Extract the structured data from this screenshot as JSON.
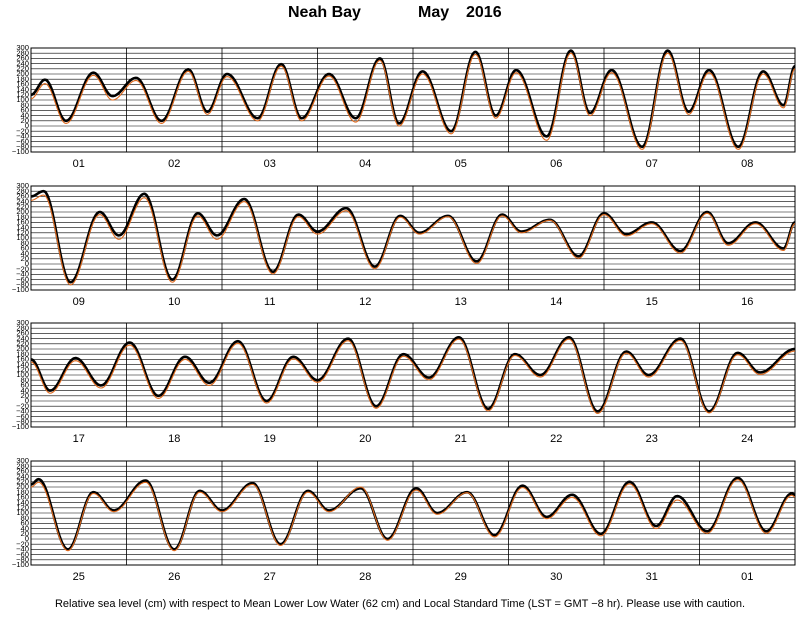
{
  "title": {
    "place": "Neah Bay",
    "month": "May",
    "year": "2016"
  },
  "caption": "Relative sea level (cm) with respect to Mean Lower Low Water (62 cm) and Local Standard Time (LST = GMT −8 hr). Please use with caution.",
  "chart_data": {
    "type": "line",
    "ylim": [
      -100,
      300
    ],
    "yticks": [
      300,
      280,
      260,
      240,
      220,
      200,
      180,
      160,
      140,
      120,
      100,
      80,
      60,
      40,
      20,
      0,
      -20,
      -40,
      -60,
      -80,
      -100
    ],
    "ytick_labels": [
      "300",
      "280",
      "260",
      "240",
      "220",
      "200",
      "180",
      "160",
      "140",
      "120",
      "100",
      "80",
      "60",
      "40",
      "20",
      "0",
      "−20",
      "−40",
      "−60",
      "−80",
      "−100"
    ],
    "grid": true,
    "series": [
      {
        "role": "observed",
        "color": "#000000"
      },
      {
        "role": "predicted",
        "color": "#e06a1e"
      }
    ],
    "colors": {
      "observed": "#000000",
      "predicted": "#e06a1e",
      "grid": "#000000"
    },
    "panels": [
      {
        "days": [
          "01",
          "02",
          "03",
          "04",
          "05",
          "06",
          "07",
          "08"
        ],
        "observed_extrema": [
          {
            "t": 0,
            "v": 120
          },
          {
            "t": 0.22,
            "v": 178
          },
          {
            "t": 0.55,
            "v": 20
          },
          {
            "t": 0.98,
            "v": 205
          },
          {
            "t": 1.28,
            "v": 115
          },
          {
            "t": 1.65,
            "v": 185
          },
          {
            "t": 2.05,
            "v": 20
          },
          {
            "t": 2.47,
            "v": 218
          },
          {
            "t": 2.77,
            "v": 55
          },
          {
            "t": 3.08,
            "v": 200
          },
          {
            "t": 3.56,
            "v": 30
          },
          {
            "t": 3.93,
            "v": 238
          },
          {
            "t": 4.25,
            "v": 30
          },
          {
            "t": 4.68,
            "v": 200
          },
          {
            "t": 5.1,
            "v": 30
          },
          {
            "t": 5.48,
            "v": 260
          },
          {
            "t": 5.78,
            "v": 10
          },
          {
            "t": 6.15,
            "v": 210
          },
          {
            "t": 6.6,
            "v": -20
          },
          {
            "t": 6.98,
            "v": 285
          },
          {
            "t": 7.3,
            "v": 40
          },
          {
            "t": 7.62,
            "v": 215
          },
          {
            "t": 8.1,
            "v": -40
          },
          {
            "t": 8.48,
            "v": 290
          },
          {
            "t": 8.78,
            "v": 50
          },
          {
            "t": 9.12,
            "v": 215
          },
          {
            "t": 9.6,
            "v": -80
          },
          {
            "t": 10.0,
            "v": 290
          },
          {
            "t": 10.33,
            "v": 55
          },
          {
            "t": 10.65,
            "v": 215
          },
          {
            "t": 11.11,
            "v": -80
          },
          {
            "t": 11.5,
            "v": 210
          },
          {
            "t": 11.82,
            "v": 80
          },
          {
            "t": 12.0,
            "v": 230
          }
        ],
        "predicted_extrema": [
          {
            "t": 0,
            "v": 105
          },
          {
            "t": 0.22,
            "v": 163
          },
          {
            "t": 0.55,
            "v": 10
          },
          {
            "t": 0.98,
            "v": 195
          },
          {
            "t": 1.28,
            "v": 100
          },
          {
            "t": 1.65,
            "v": 175
          },
          {
            "t": 2.05,
            "v": 10
          },
          {
            "t": 2.47,
            "v": 210
          },
          {
            "t": 2.77,
            "v": 45
          },
          {
            "t": 3.08,
            "v": 190
          },
          {
            "t": 3.56,
            "v": 20
          },
          {
            "t": 3.93,
            "v": 230
          },
          {
            "t": 4.25,
            "v": 20
          },
          {
            "t": 4.68,
            "v": 192
          },
          {
            "t": 5.1,
            "v": 15
          },
          {
            "t": 5.48,
            "v": 252
          },
          {
            "t": 5.78,
            "v": 0
          },
          {
            "t": 6.15,
            "v": 200
          },
          {
            "t": 6.6,
            "v": -30
          },
          {
            "t": 6.98,
            "v": 275
          },
          {
            "t": 7.3,
            "v": 30
          },
          {
            "t": 7.62,
            "v": 205
          },
          {
            "t": 8.1,
            "v": -55
          },
          {
            "t": 8.48,
            "v": 280
          },
          {
            "t": 8.78,
            "v": 40
          },
          {
            "t": 9.12,
            "v": 205
          },
          {
            "t": 9.6,
            "v": -90
          },
          {
            "t": 10.0,
            "v": 280
          },
          {
            "t": 10.33,
            "v": 45
          },
          {
            "t": 10.65,
            "v": 205
          },
          {
            "t": 11.11,
            "v": -90
          },
          {
            "t": 11.5,
            "v": 200
          },
          {
            "t": 11.82,
            "v": 70
          },
          {
            "t": 12.0,
            "v": 220
          }
        ]
      },
      {
        "days": [
          "09",
          "10",
          "11",
          "12",
          "13",
          "14",
          "15",
          "16"
        ],
        "observed_extrema": [
          {
            "t": 0,
            "v": 260
          },
          {
            "t": 0.2,
            "v": 280
          },
          {
            "t": 0.62,
            "v": -70
          },
          {
            "t": 1.08,
            "v": 200
          },
          {
            "t": 1.38,
            "v": 110
          },
          {
            "t": 1.78,
            "v": 270
          },
          {
            "t": 2.22,
            "v": -60
          },
          {
            "t": 2.62,
            "v": 195
          },
          {
            "t": 2.92,
            "v": 110
          },
          {
            "t": 3.35,
            "v": 250
          },
          {
            "t": 3.8,
            "v": -30
          },
          {
            "t": 4.2,
            "v": 190
          },
          {
            "t": 4.5,
            "v": 125
          },
          {
            "t": 4.95,
            "v": 215
          },
          {
            "t": 5.4,
            "v": -10
          },
          {
            "t": 5.8,
            "v": 185
          },
          {
            "t": 6.1,
            "v": 120
          },
          {
            "t": 6.55,
            "v": 185
          },
          {
            "t": 7.0,
            "v": 10
          },
          {
            "t": 7.4,
            "v": 190
          },
          {
            "t": 7.7,
            "v": 125
          },
          {
            "t": 8.15,
            "v": 170
          },
          {
            "t": 8.6,
            "v": 30
          },
          {
            "t": 9.0,
            "v": 195
          },
          {
            "t": 9.35,
            "v": 115
          },
          {
            "t": 9.75,
            "v": 160
          },
          {
            "t": 10.2,
            "v": 50
          },
          {
            "t": 10.62,
            "v": 200
          },
          {
            "t": 10.95,
            "v": 80
          },
          {
            "t": 11.38,
            "v": 160
          },
          {
            "t": 11.82,
            "v": 60
          },
          {
            "t": 12.0,
            "v": 160
          }
        ],
        "predicted_extrema": [
          {
            "t": 0,
            "v": 245
          },
          {
            "t": 0.2,
            "v": 265
          },
          {
            "t": 0.62,
            "v": -80
          },
          {
            "t": 1.08,
            "v": 190
          },
          {
            "t": 1.38,
            "v": 95
          },
          {
            "t": 1.78,
            "v": 255
          },
          {
            "t": 2.22,
            "v": -70
          },
          {
            "t": 2.62,
            "v": 185
          },
          {
            "t": 2.92,
            "v": 95
          },
          {
            "t": 3.35,
            "v": 240
          },
          {
            "t": 3.8,
            "v": -38
          },
          {
            "t": 4.2,
            "v": 182
          },
          {
            "t": 4.5,
            "v": 115
          },
          {
            "t": 4.95,
            "v": 205
          },
          {
            "t": 5.4,
            "v": -18
          },
          {
            "t": 5.8,
            "v": 180
          },
          {
            "t": 6.1,
            "v": 115
          },
          {
            "t": 6.55,
            "v": 182
          },
          {
            "t": 7.0,
            "v": 2
          },
          {
            "t": 7.4,
            "v": 185
          },
          {
            "t": 7.7,
            "v": 120
          },
          {
            "t": 8.15,
            "v": 168
          },
          {
            "t": 8.6,
            "v": 22
          },
          {
            "t": 9.0,
            "v": 190
          },
          {
            "t": 9.35,
            "v": 108
          },
          {
            "t": 9.75,
            "v": 155
          },
          {
            "t": 10.2,
            "v": 42
          },
          {
            "t": 10.62,
            "v": 195
          },
          {
            "t": 10.95,
            "v": 72
          },
          {
            "t": 11.38,
            "v": 155
          },
          {
            "t": 11.82,
            "v": 52
          },
          {
            "t": 12.0,
            "v": 155
          }
        ]
      },
      {
        "days": [
          "17",
          "18",
          "19",
          "20",
          "21",
          "22",
          "23",
          "24"
        ],
        "observed_extrema": [
          {
            "t": 0,
            "v": 160
          },
          {
            "t": 0.3,
            "v": 40
          },
          {
            "t": 0.7,
            "v": 165
          },
          {
            "t": 1.1,
            "v": 60
          },
          {
            "t": 1.55,
            "v": 225
          },
          {
            "t": 2.0,
            "v": 20
          },
          {
            "t": 2.42,
            "v": 170
          },
          {
            "t": 2.8,
            "v": 70
          },
          {
            "t": 3.25,
            "v": 230
          },
          {
            "t": 3.7,
            "v": 0
          },
          {
            "t": 4.12,
            "v": 170
          },
          {
            "t": 4.5,
            "v": 80
          },
          {
            "t": 4.98,
            "v": 240
          },
          {
            "t": 5.42,
            "v": -20
          },
          {
            "t": 5.85,
            "v": 180
          },
          {
            "t": 6.25,
            "v": 90
          },
          {
            "t": 6.72,
            "v": 245
          },
          {
            "t": 7.18,
            "v": -30
          },
          {
            "t": 7.6,
            "v": 180
          },
          {
            "t": 8.0,
            "v": 100
          },
          {
            "t": 8.45,
            "v": 245
          },
          {
            "t": 8.9,
            "v": -40
          },
          {
            "t": 9.35,
            "v": 190
          },
          {
            "t": 9.7,
            "v": 100
          },
          {
            "t": 10.2,
            "v": 240
          },
          {
            "t": 10.65,
            "v": -40
          },
          {
            "t": 11.1,
            "v": 185
          },
          {
            "t": 11.45,
            "v": 110
          },
          {
            "t": 12.0,
            "v": 200
          }
        ],
        "predicted_extrema": [
          {
            "t": 0,
            "v": 150
          },
          {
            "t": 0.3,
            "v": 30
          },
          {
            "t": 0.7,
            "v": 155
          },
          {
            "t": 1.1,
            "v": 50
          },
          {
            "t": 1.55,
            "v": 215
          },
          {
            "t": 2.0,
            "v": 10
          },
          {
            "t": 2.42,
            "v": 160
          },
          {
            "t": 2.8,
            "v": 60
          },
          {
            "t": 3.25,
            "v": 222
          },
          {
            "t": 3.7,
            "v": -8
          },
          {
            "t": 4.12,
            "v": 162
          },
          {
            "t": 4.5,
            "v": 72
          },
          {
            "t": 4.98,
            "v": 232
          },
          {
            "t": 5.42,
            "v": -28
          },
          {
            "t": 5.85,
            "v": 172
          },
          {
            "t": 6.25,
            "v": 82
          },
          {
            "t": 6.72,
            "v": 238
          },
          {
            "t": 7.18,
            "v": -38
          },
          {
            "t": 7.6,
            "v": 175
          },
          {
            "t": 8.0,
            "v": 92
          },
          {
            "t": 8.45,
            "v": 238
          },
          {
            "t": 8.9,
            "v": -48
          },
          {
            "t": 9.35,
            "v": 184
          },
          {
            "t": 9.7,
            "v": 92
          },
          {
            "t": 10.2,
            "v": 233
          },
          {
            "t": 10.65,
            "v": -46
          },
          {
            "t": 11.1,
            "v": 178
          },
          {
            "t": 11.45,
            "v": 102
          },
          {
            "t": 12.0,
            "v": 192
          }
        ]
      },
      {
        "days": [
          "25",
          "26",
          "27",
          "28",
          "29",
          "30",
          "31",
          "01"
        ],
        "observed_extrema": [
          {
            "t": 0,
            "v": 210
          },
          {
            "t": 0.12,
            "v": 230
          },
          {
            "t": 0.58,
            "v": -40
          },
          {
            "t": 0.98,
            "v": 180
          },
          {
            "t": 1.3,
            "v": 110
          },
          {
            "t": 1.8,
            "v": 225
          },
          {
            "t": 2.25,
            "v": -40
          },
          {
            "t": 2.65,
            "v": 185
          },
          {
            "t": 3.0,
            "v": 110
          },
          {
            "t": 3.48,
            "v": 215
          },
          {
            "t": 3.92,
            "v": -20
          },
          {
            "t": 4.35,
            "v": 185
          },
          {
            "t": 4.68,
            "v": 110
          },
          {
            "t": 5.18,
            "v": 195
          },
          {
            "t": 5.6,
            "v": 0
          },
          {
            "t": 6.05,
            "v": 195
          },
          {
            "t": 6.38,
            "v": 100
          },
          {
            "t": 6.85,
            "v": 180
          },
          {
            "t": 7.28,
            "v": 15
          },
          {
            "t": 7.72,
            "v": 205
          },
          {
            "t": 8.1,
            "v": 85
          },
          {
            "t": 8.5,
            "v": 170
          },
          {
            "t": 8.95,
            "v": 20
          },
          {
            "t": 9.4,
            "v": 220
          },
          {
            "t": 9.82,
            "v": 50
          },
          {
            "t": 10.15,
            "v": 165
          },
          {
            "t": 10.62,
            "v": 30
          },
          {
            "t": 11.1,
            "v": 235
          },
          {
            "t": 11.55,
            "v": 30
          },
          {
            "t": 11.95,
            "v": 175
          },
          {
            "t": 12.0,
            "v": 170
          }
        ],
        "predicted_extrema": [
          {
            "t": 0,
            "v": 200
          },
          {
            "t": 0.12,
            "v": 218
          },
          {
            "t": 0.58,
            "v": -45
          },
          {
            "t": 0.98,
            "v": 175
          },
          {
            "t": 1.3,
            "v": 105
          },
          {
            "t": 1.8,
            "v": 218
          },
          {
            "t": 2.25,
            "v": -45
          },
          {
            "t": 2.65,
            "v": 180
          },
          {
            "t": 3.0,
            "v": 105
          },
          {
            "t": 3.48,
            "v": 210
          },
          {
            "t": 3.92,
            "v": -25
          },
          {
            "t": 4.35,
            "v": 180
          },
          {
            "t": 4.68,
            "v": 105
          },
          {
            "t": 5.18,
            "v": 200
          },
          {
            "t": 5.6,
            "v": -5
          },
          {
            "t": 6.05,
            "v": 188
          },
          {
            "t": 6.38,
            "v": 95
          },
          {
            "t": 6.85,
            "v": 178
          },
          {
            "t": 7.28,
            "v": 8
          },
          {
            "t": 7.72,
            "v": 198
          },
          {
            "t": 8.1,
            "v": 78
          },
          {
            "t": 8.5,
            "v": 160
          },
          {
            "t": 8.95,
            "v": 12
          },
          {
            "t": 9.4,
            "v": 212
          },
          {
            "t": 9.82,
            "v": 40
          },
          {
            "t": 10.15,
            "v": 150
          },
          {
            "t": 10.62,
            "v": 22
          },
          {
            "t": 11.1,
            "v": 228
          },
          {
            "t": 11.55,
            "v": 22
          },
          {
            "t": 11.95,
            "v": 168
          },
          {
            "t": 12.0,
            "v": 162
          }
        ]
      }
    ]
  }
}
